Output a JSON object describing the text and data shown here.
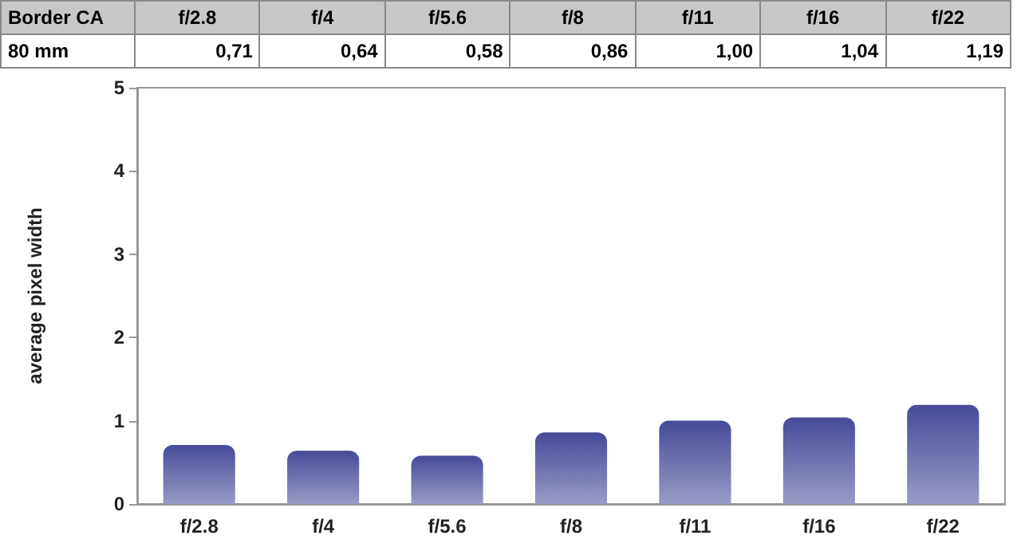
{
  "chart_data": {
    "type": "bar",
    "title": "Border CA",
    "ylabel": "average pixel width",
    "categories": [
      "f/2.8",
      "f/4",
      "f/5.6",
      "f/8",
      "f/11",
      "f/16",
      "f/22"
    ],
    "series": [
      {
        "name": "80 mm",
        "color": "#464a98",
        "values": [
          0.71,
          0.64,
          0.58,
          0.86,
          1.0,
          1.04,
          1.19
        ],
        "value_labels": [
          "0,71",
          "0,64",
          "0,58",
          "0,86",
          "1,00",
          "1,04",
          "1,19"
        ]
      }
    ],
    "ylim": [
      0,
      5
    ],
    "yticks": [
      0,
      1,
      2,
      3,
      4,
      5
    ]
  }
}
